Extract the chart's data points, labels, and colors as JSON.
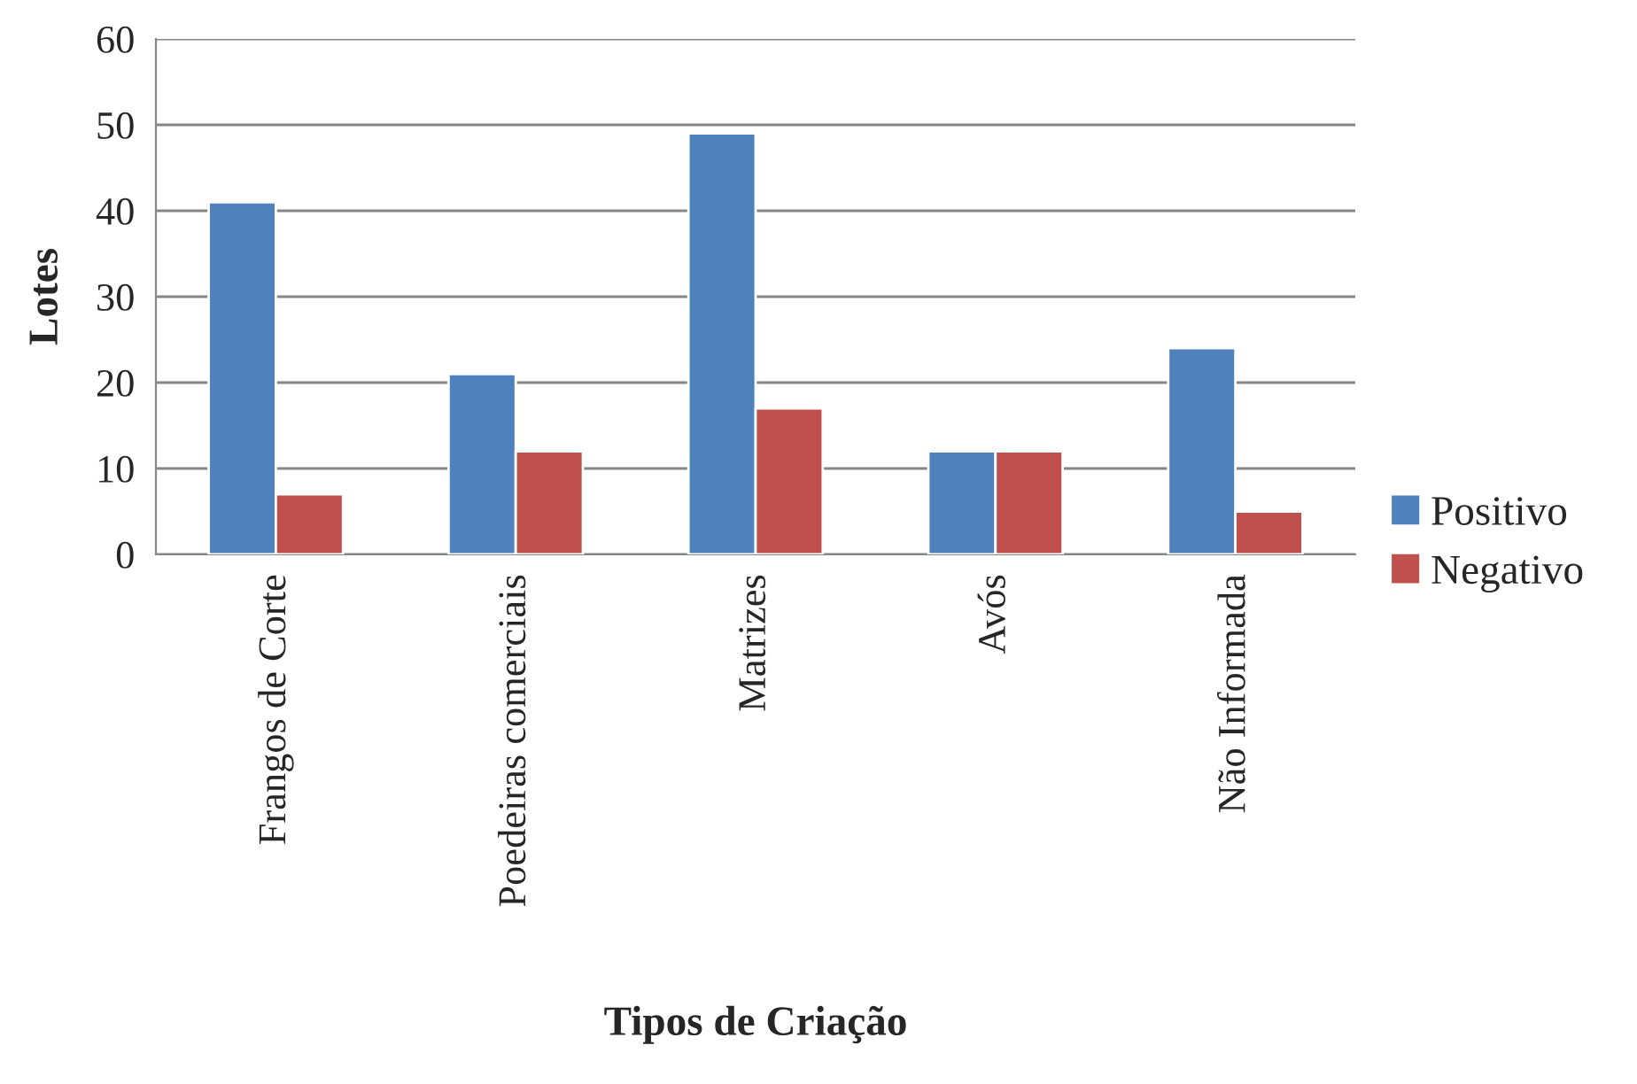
{
  "chart_data": {
    "type": "bar",
    "xlabel": "Tipos de Criação",
    "ylabel": "Lotes",
    "categories": [
      "Frangos de Corte",
      "Poedeiras comerciais",
      "Matrizes",
      "Avós",
      "Não Informada"
    ],
    "series": [
      {
        "name": "Positivo",
        "color": "#4f81bd",
        "values": [
          41,
          21,
          49,
          12,
          24
        ]
      },
      {
        "name": "Negativo",
        "color": "#c0504d",
        "values": [
          7,
          12,
          17,
          12,
          5
        ]
      }
    ],
    "ylim": [
      0,
      60
    ],
    "yticks": [
      0,
      10,
      20,
      30,
      40,
      50,
      60
    ],
    "grid": "y",
    "legend": "right"
  }
}
